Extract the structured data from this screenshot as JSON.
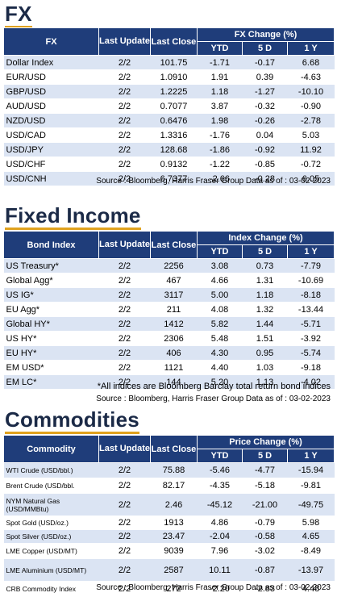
{
  "fx": {
    "title": "FX",
    "headers": {
      "name": "FX",
      "last_update": "Last Update",
      "last_close": "Last Close",
      "change_group": "FX Change (%)",
      "ytd": "YTD",
      "d5": "5 D",
      "y1": "1 Y"
    },
    "rows": [
      [
        "Dollar Index",
        "2/2",
        "101.75",
        "-1.71",
        "-0.17",
        "6.68"
      ],
      [
        "EUR/USD",
        "2/2",
        "1.0910",
        "1.91",
        "0.39",
        "-4.63"
      ],
      [
        "GBP/USD",
        "2/2",
        "1.2225",
        "1.18",
        "-1.27",
        "-10.10"
      ],
      [
        "AUD/USD",
        "2/2",
        "0.7077",
        "3.87",
        "-0.32",
        "-0.90"
      ],
      [
        "NZD/USD",
        "2/2",
        "0.6476",
        "1.98",
        "-0.26",
        "-2.78"
      ],
      [
        "USD/CAD",
        "2/2",
        "1.3316",
        "-1.76",
        "0.04",
        "5.03"
      ],
      [
        "USD/JPY",
        "2/2",
        "128.68",
        "-1.86",
        "-0.92",
        "11.92"
      ],
      [
        "USD/CHF",
        "2/2",
        "0.9132",
        "-1.22",
        "-0.85",
        "-0.72"
      ],
      [
        "USD/CNH",
        "2/2",
        "6.7377",
        "-2.66",
        "-0.28",
        "6.05"
      ]
    ],
    "source": "Source : Bloomberg, Harris Fraser Group Data as of : 03-02-2023"
  },
  "fixed_income": {
    "title": "Fixed Income",
    "headers": {
      "name": "Bond Index",
      "last_update": "Last Update",
      "last_close": "Last Close",
      "change_group": "Index Change (%)",
      "ytd": "YTD",
      "d5": "5 D",
      "y1": "1 Y"
    },
    "rows": [
      [
        "US Treasury*",
        "2/2",
        "2256",
        "3.08",
        "0.73",
        "-7.79"
      ],
      [
        "Global Agg*",
        "2/2",
        "467",
        "4.66",
        "1.31",
        "-10.69"
      ],
      [
        "US IG*",
        "2/2",
        "3117",
        "5.00",
        "1.18",
        "-8.18"
      ],
      [
        "EU Agg*",
        "2/2",
        "211",
        "4.08",
        "1.32",
        "-13.44"
      ],
      [
        "Global HY*",
        "2/2",
        "1412",
        "5.82",
        "1.44",
        "-5.71"
      ],
      [
        "US HY*",
        "2/2",
        "2306",
        "5.48",
        "1.51",
        "-3.92"
      ],
      [
        "EU HY*",
        "2/2",
        "406",
        "4.30",
        "0.95",
        "-5.74"
      ],
      [
        "EM USD*",
        "2/2",
        "1121",
        "4.40",
        "1.03",
        "-9.18"
      ],
      [
        "EM LC*",
        "2/2",
        "144",
        "5.20",
        "1.13",
        "-4.02"
      ]
    ],
    "note": "*All indices are Bloomberg Barclay total return bond indices",
    "source": "Source : Bloomberg, Harris Fraser Group Data as of : 03-02-2023"
  },
  "commodities": {
    "title": "Commodities",
    "headers": {
      "name": "Commodity",
      "last_update": "Last Update",
      "last_close": "Last Close",
      "change_group": "Price Change (%)",
      "ytd": "YTD",
      "d5": "5 D",
      "y1": "1 Y"
    },
    "rows": [
      [
        "WTI Crude (USD/bbl.)",
        "2/2",
        "75.88",
        "-5.46",
        "-4.77",
        "-15.94"
      ],
      [
        "Brent Crude (USD/bbl.",
        "2/2",
        "82.17",
        "-4.35",
        "-5.18",
        "-9.81"
      ],
      [
        "NYM Natural Gas (USD/MMBtu)",
        "2/2",
        "2.46",
        "-45.12",
        "-21.00",
        "-49.75"
      ],
      [
        "Spot Gold (USD/oz.)",
        "2/2",
        "1913",
        "4.86",
        "-0.79",
        "5.98"
      ],
      [
        "Spot Silver  (USD/oz.)",
        "2/2",
        "23.47",
        "-2.04",
        "-0.58",
        "4.65"
      ],
      [
        "LME Copper  (USD/MT)",
        "2/2",
        "9039",
        "7.96",
        "-3.02",
        "-8.49"
      ],
      [
        "LME Aluminium (USD/MT)",
        "2/2",
        "2587",
        "10.11",
        "-0.87",
        "-13.97"
      ],
      [
        "CRB Commodity Index",
        "2/2",
        "272",
        "-2.20",
        "-2.83",
        "4.48"
      ]
    ],
    "source": "Source : Bloomberg, Harris Fraser Group Data as of : 03-02-2023"
  }
}
